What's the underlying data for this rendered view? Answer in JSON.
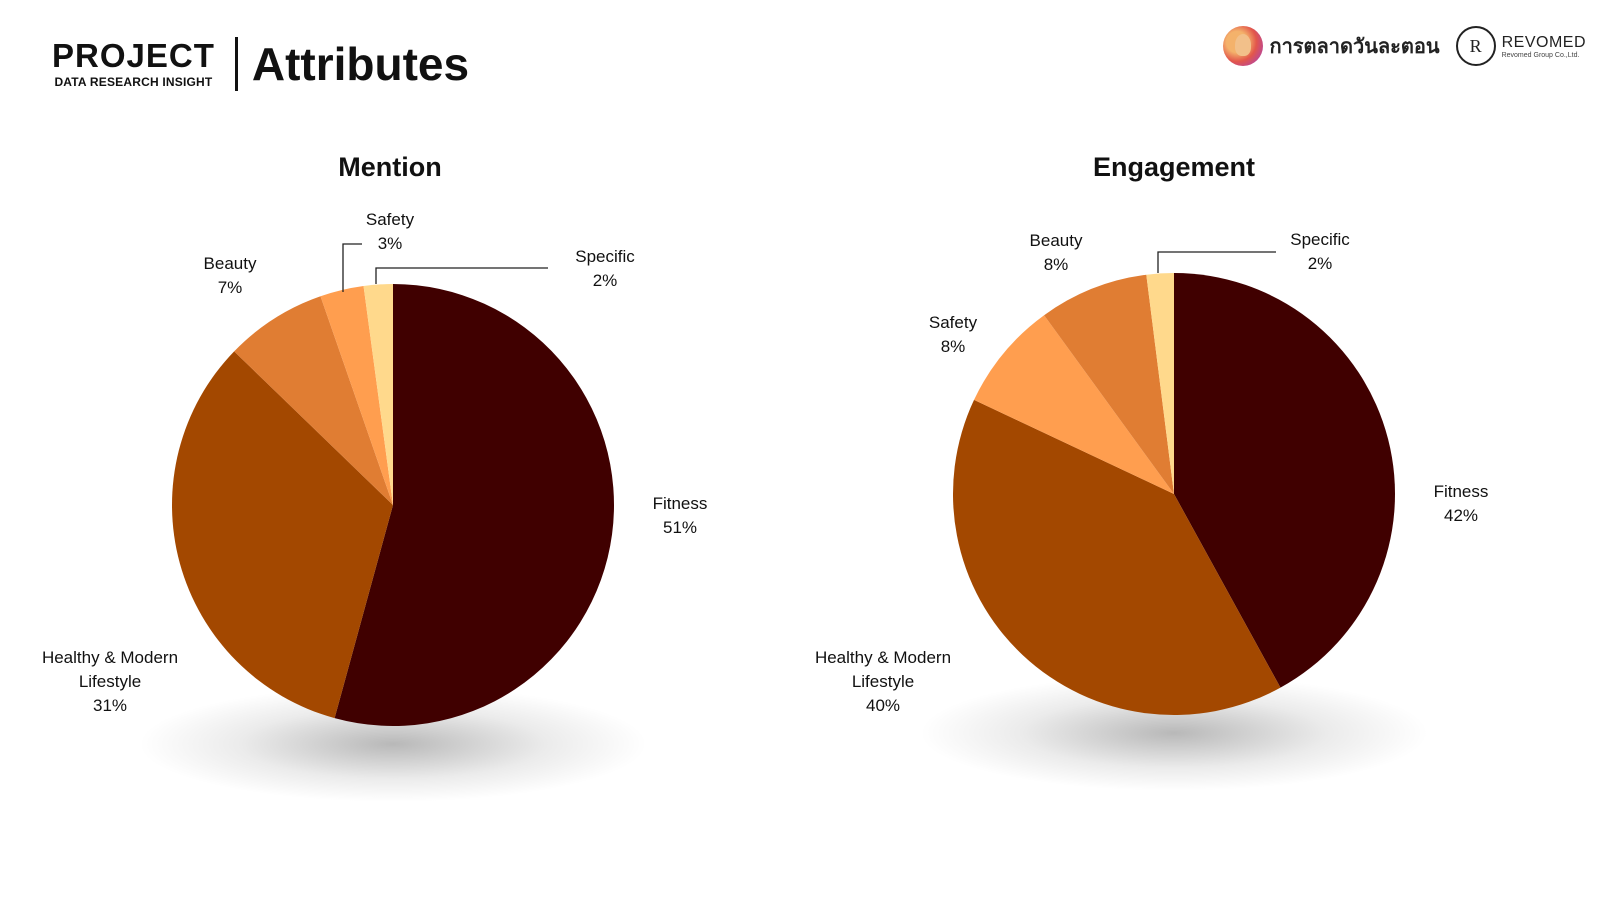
{
  "header": {
    "project": "PROJECT",
    "subtitle": "DATA RESEARCH INSIGHT",
    "title": "Attributes"
  },
  "logos": {
    "thai_name": "การตลาดวันละตอน",
    "revomed_mark": "R",
    "revomed_name": "REVOMED",
    "revomed_tagline": "Revomed Group Co.,Ltd."
  },
  "chart_data": [
    {
      "type": "pie",
      "title": "Mention",
      "slices": [
        {
          "label": "Fitness",
          "label_lines": [
            "Fitness"
          ],
          "value": 51,
          "display": "51%",
          "color": "#400000"
        },
        {
          "label": "Healthy & Modern Lifestyle",
          "label_lines": [
            "Healthy & Modern",
            "Lifestyle"
          ],
          "value": 31,
          "display": "31%",
          "color": "#a34800"
        },
        {
          "label": "Beauty",
          "label_lines": [
            "Beauty"
          ],
          "value": 7,
          "display": "7%",
          "color": "#e07d33"
        },
        {
          "label": "Safety",
          "label_lines": [
            "Safety"
          ],
          "value": 3,
          "display": "3%",
          "color": "#ff9e4f"
        },
        {
          "label": "Specific",
          "label_lines": [
            "Specific"
          ],
          "value": 2,
          "display": "2%",
          "color": "#ffd98c"
        }
      ]
    },
    {
      "type": "pie",
      "title": "Engagement",
      "slices": [
        {
          "label": "Fitness",
          "label_lines": [
            "Fitness"
          ],
          "value": 42,
          "display": "42%",
          "color": "#400000"
        },
        {
          "label": "Healthy & Modern Lifestyle",
          "label_lines": [
            "Healthy & Modern",
            "Lifestyle"
          ],
          "value": 40,
          "display": "40%",
          "color": "#a34800"
        },
        {
          "label": "Safety",
          "label_lines": [
            "Safety"
          ],
          "value": 8,
          "display": "8%",
          "color": "#ff9e4f"
        },
        {
          "label": "Beauty",
          "label_lines": [
            "Beauty"
          ],
          "value": 8,
          "display": "8%",
          "color": "#e07d33"
        },
        {
          "label": "Specific",
          "label_lines": [
            "Specific"
          ],
          "value": 2,
          "display": "2%",
          "color": "#ffd98c"
        }
      ]
    }
  ]
}
